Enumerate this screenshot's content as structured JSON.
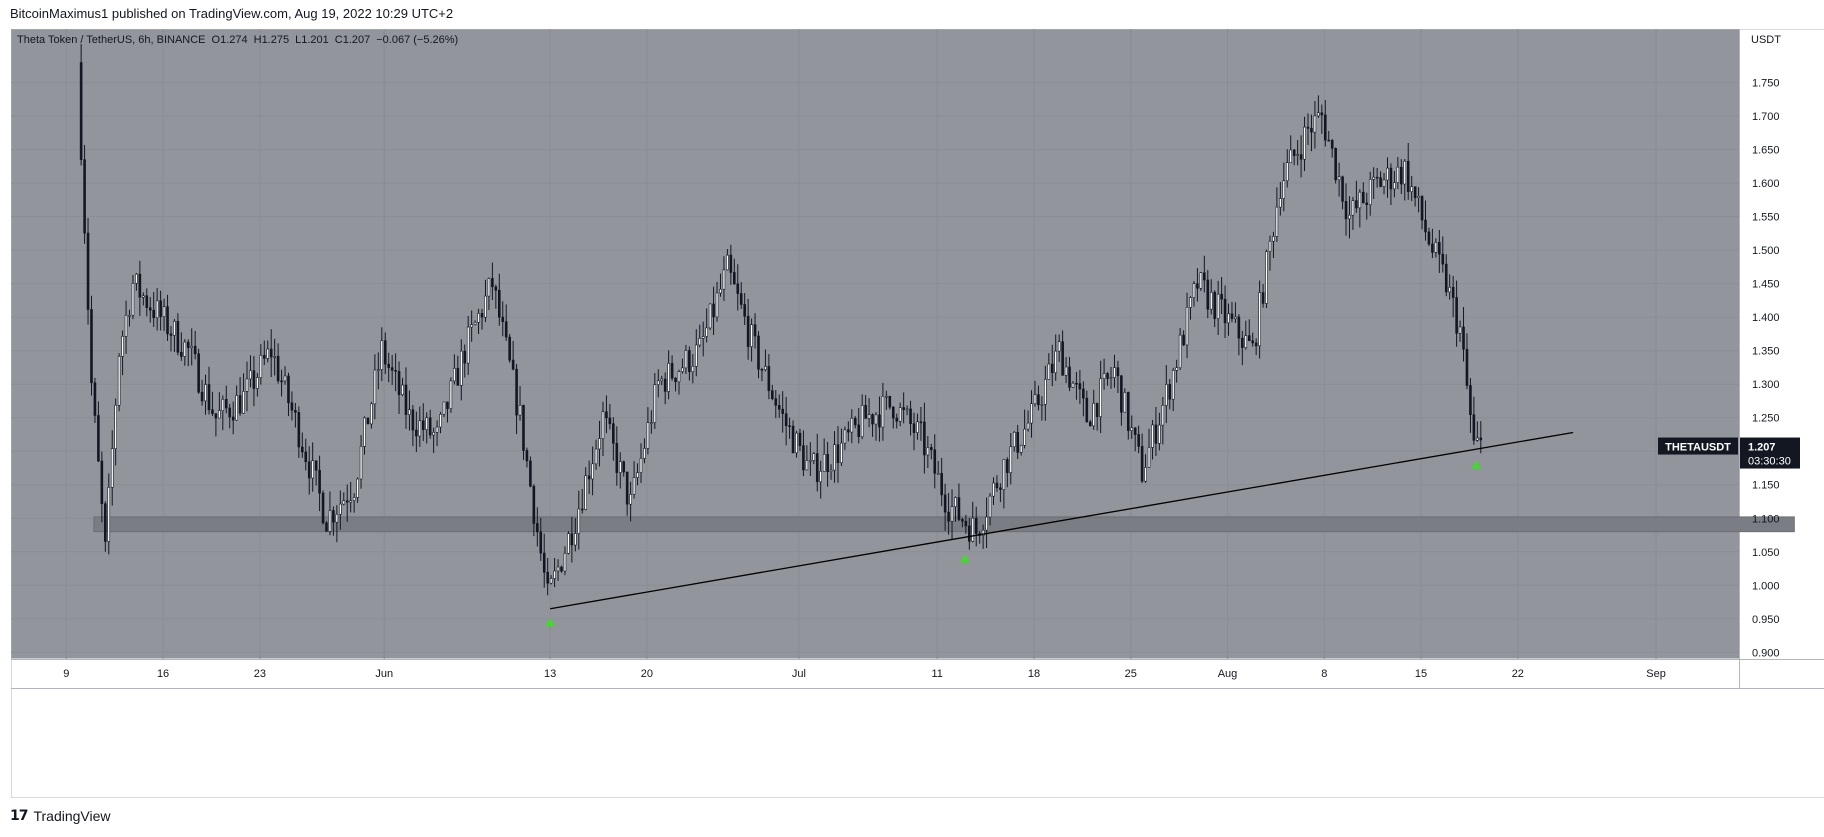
{
  "header": {
    "published_by": "BitcoinMaximus1 published on TradingView.com, Aug 19, 2022 10:29 UTC+2"
  },
  "legend": {
    "symbol": "Theta Token / TetherUS, 6h, BINANCE",
    "open": "O1.274",
    "high": "H1.275",
    "low": "L1.201",
    "close": "C1.207",
    "change": "−0.067 (−5.26%)"
  },
  "price_label": {
    "ticker": "THETAUSDT",
    "price": "1.207",
    "countdown": "03:30:30"
  },
  "footer": {
    "brand": "TradingView",
    "logo_glyph": "17"
  },
  "colors": {
    "background": "#93959c",
    "grid": "#8b8d94",
    "candle": "#131722",
    "support_zone": "#7b7d84",
    "support_arrow": "#3ddc27"
  },
  "chart_data": {
    "type": "candlestick",
    "symbol": "THETAUSDT",
    "interval": "6h",
    "exchange": "BINANCE",
    "y_axis_label": "USDT",
    "ylim": [
      0.89,
      1.83
    ],
    "y_ticks": [
      "1.750",
      "1.700",
      "1.650",
      "1.600",
      "1.550",
      "1.500",
      "1.450",
      "1.400",
      "1.350",
      "1.300",
      "1.250",
      "1.200",
      "1.150",
      "1.100",
      "1.050",
      "1.000",
      "0.950",
      "0.900"
    ],
    "x_ticks": [
      {
        "label": "9",
        "date": "2022-05-09"
      },
      {
        "label": "16",
        "date": "2022-05-16"
      },
      {
        "label": "23",
        "date": "2022-05-23"
      },
      {
        "label": "Jun",
        "date": "2022-06-01"
      },
      {
        "label": "13",
        "date": "2022-06-13"
      },
      {
        "label": "20",
        "date": "2022-06-20"
      },
      {
        "label": "Jul",
        "date": "2022-07-01"
      },
      {
        "label": "11",
        "date": "2022-07-11"
      },
      {
        "label": "18",
        "date": "2022-07-18"
      },
      {
        "label": "25",
        "date": "2022-07-25"
      },
      {
        "label": "Aug",
        "date": "2022-08-01"
      },
      {
        "label": "8",
        "date": "2022-08-08"
      },
      {
        "label": "15",
        "date": "2022-08-15"
      },
      {
        "label": "22",
        "date": "2022-08-22"
      },
      {
        "label": "Sep",
        "date": "2022-09-01"
      }
    ],
    "price_path": [
      [
        "2022-05-10",
        1.78
      ],
      [
        "2022-05-11",
        1.3
      ],
      [
        "2022-05-12",
        1.05
      ],
      [
        "2022-05-13",
        1.35
      ],
      [
        "2022-05-14",
        1.45
      ],
      [
        "2022-05-16",
        1.4
      ],
      [
        "2022-05-18",
        1.35
      ],
      [
        "2022-05-20",
        1.25
      ],
      [
        "2022-05-22",
        1.28
      ],
      [
        "2022-05-24",
        1.35
      ],
      [
        "2022-05-26",
        1.23
      ],
      [
        "2022-05-28",
        1.1
      ],
      [
        "2022-05-30",
        1.15
      ],
      [
        "2022-06-01",
        1.35
      ],
      [
        "2022-06-03",
        1.25
      ],
      [
        "2022-06-05",
        1.22
      ],
      [
        "2022-06-07",
        1.35
      ],
      [
        "2022-06-09",
        1.45
      ],
      [
        "2022-06-11",
        1.25
      ],
      [
        "2022-06-13",
        0.98
      ],
      [
        "2022-06-15",
        1.1
      ],
      [
        "2022-06-17",
        1.25
      ],
      [
        "2022-06-19",
        1.12
      ],
      [
        "2022-06-21",
        1.3
      ],
      [
        "2022-06-24",
        1.35
      ],
      [
        "2022-06-26",
        1.47
      ],
      [
        "2022-06-28",
        1.35
      ],
      [
        "2022-06-30",
        1.25
      ],
      [
        "2022-07-02",
        1.17
      ],
      [
        "2022-07-04",
        1.2
      ],
      [
        "2022-07-06",
        1.25
      ],
      [
        "2022-07-08",
        1.27
      ],
      [
        "2022-07-10",
        1.22
      ],
      [
        "2022-07-12",
        1.12
      ],
      [
        "2022-07-14",
        1.08
      ],
      [
        "2022-07-16",
        1.18
      ],
      [
        "2022-07-18",
        1.25
      ],
      [
        "2022-07-20",
        1.35
      ],
      [
        "2022-07-22",
        1.25
      ],
      [
        "2022-07-24",
        1.32
      ],
      [
        "2022-07-26",
        1.17
      ],
      [
        "2022-07-28",
        1.3
      ],
      [
        "2022-07-30",
        1.45
      ],
      [
        "2022-08-01",
        1.4
      ],
      [
        "2022-08-03",
        1.35
      ],
      [
        "2022-08-05",
        1.6
      ],
      [
        "2022-08-07",
        1.68
      ],
      [
        "2022-08-08",
        1.7
      ],
      [
        "2022-08-10",
        1.55
      ],
      [
        "2022-08-12",
        1.6
      ],
      [
        "2022-08-14",
        1.62
      ],
      [
        "2022-08-16",
        1.5
      ],
      [
        "2022-08-17",
        1.45
      ],
      [
        "2022-08-18",
        1.38
      ],
      [
        "2022-08-19",
        1.207
      ]
    ],
    "support_zone": {
      "from": 1.08,
      "to": 1.102
    },
    "ascending_support_line": {
      "start": {
        "date": "2022-06-13",
        "price": 0.965
      },
      "end": {
        "date": "2022-08-26",
        "price": 1.228
      }
    },
    "support_touches": [
      {
        "date": "2022-06-13",
        "price": 0.945
      },
      {
        "date": "2022-07-13",
        "price": 1.04
      },
      {
        "date": "2022-08-19",
        "price": 1.18
      }
    ],
    "last_price": 1.207
  }
}
